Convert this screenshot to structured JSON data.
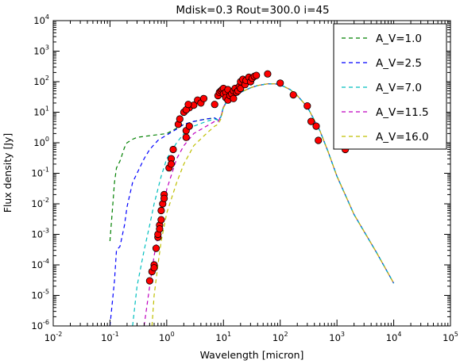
{
  "chart_data": {
    "type": "line",
    "title": "Mdisk=0.3 Rout=300.0 i=45",
    "xlabel": "Wavelength [micron]",
    "ylabel": "Flux density [Jy]",
    "xscale": "log",
    "yscale": "log",
    "xlim": [
      0.01,
      100000
    ],
    "ylim": [
      1e-06,
      10000
    ],
    "xticks": [
      {
        "base": "10",
        "exp": "-2"
      },
      {
        "base": "10",
        "exp": "-1"
      },
      {
        "base": "10",
        "exp": "0"
      },
      {
        "base": "10",
        "exp": "1"
      },
      {
        "base": "10",
        "exp": "2"
      },
      {
        "base": "10",
        "exp": "3"
      },
      {
        "base": "10",
        "exp": "4"
      },
      {
        "base": "10",
        "exp": "5"
      }
    ],
    "yticks": [
      {
        "base": "10",
        "exp": "-6"
      },
      {
        "base": "10",
        "exp": "-5"
      },
      {
        "base": "10",
        "exp": "-4"
      },
      {
        "base": "10",
        "exp": "-3"
      },
      {
        "base": "10",
        "exp": "-2"
      },
      {
        "base": "10",
        "exp": "-1"
      },
      {
        "base": "10",
        "exp": "0"
      },
      {
        "base": "10",
        "exp": "1"
      },
      {
        "base": "10",
        "exp": "2"
      },
      {
        "base": "10",
        "exp": "3"
      },
      {
        "base": "10",
        "exp": "4"
      }
    ],
    "grid": false,
    "legend_position": "top-right",
    "series": [
      {
        "name": "A_V=1.0",
        "color": "#008000",
        "style": "dashed",
        "points": [
          [
            0.1,
            0.0006
          ],
          [
            0.11,
            0.006
          ],
          [
            0.12,
            0.05
          ],
          [
            0.13,
            0.15
          ],
          [
            0.15,
            0.25
          ],
          [
            0.18,
            0.7
          ],
          [
            0.2,
            1.0
          ],
          [
            0.25,
            1.3
          ],
          [
            0.3,
            1.5
          ],
          [
            0.5,
            1.7
          ],
          [
            0.8,
            1.9
          ],
          [
            1.0,
            2.0
          ],
          [
            1.5,
            3.0
          ],
          [
            2.0,
            4.0
          ],
          [
            3.0,
            5.0
          ],
          [
            5.0,
            6.0
          ],
          [
            7.0,
            6.5
          ],
          [
            8.0,
            5.5
          ],
          [
            9.0,
            7.0
          ],
          [
            10.0,
            15.0
          ],
          [
            12.0,
            25.0
          ],
          [
            15.0,
            32.0
          ],
          [
            20.0,
            45.0
          ],
          [
            30.0,
            63.0
          ],
          [
            40.0,
            75.0
          ],
          [
            60.0,
            85.0
          ],
          [
            80.0,
            85.0
          ],
          [
            100.0,
            80.0
          ],
          [
            150.0,
            55.0
          ],
          [
            200.0,
            35.0
          ],
          [
            300.0,
            15.0
          ],
          [
            500.0,
            2.5
          ],
          [
            700.0,
            0.5
          ],
          [
            1000.0,
            0.08
          ],
          [
            2000.0,
            0.0045
          ],
          [
            5000.0,
            0.00025
          ],
          [
            10000.0,
            2.5e-05
          ]
        ]
      },
      {
        "name": "A_V=2.5",
        "color": "#0000ff",
        "style": "dashed",
        "points": [
          [
            0.1,
            1e-06
          ],
          [
            0.12,
            3e-05
          ],
          [
            0.13,
            0.0003
          ],
          [
            0.15,
            0.0004
          ],
          [
            0.18,
            0.002
          ],
          [
            0.2,
            0.008
          ],
          [
            0.25,
            0.05
          ],
          [
            0.3,
            0.1
          ],
          [
            0.4,
            0.3
          ],
          [
            0.5,
            0.6
          ],
          [
            0.7,
            1.2
          ],
          [
            1.0,
            1.8
          ],
          [
            1.5,
            2.8
          ],
          [
            2.0,
            4.0
          ],
          [
            3.0,
            5.0
          ],
          [
            5.0,
            6.0
          ],
          [
            7.0,
            6.5
          ],
          [
            8.0,
            5.5
          ],
          [
            9.0,
            7.0
          ],
          [
            10.0,
            15.0
          ],
          [
            12.0,
            25.0
          ],
          [
            15.0,
            32.0
          ],
          [
            20.0,
            45.0
          ],
          [
            30.0,
            63.0
          ],
          [
            40.0,
            75.0
          ],
          [
            60.0,
            85.0
          ],
          [
            80.0,
            85.0
          ],
          [
            100.0,
            80.0
          ],
          [
            150.0,
            55.0
          ],
          [
            200.0,
            35.0
          ],
          [
            300.0,
            15.0
          ],
          [
            500.0,
            2.5
          ],
          [
            700.0,
            0.5
          ],
          [
            1000.0,
            0.08
          ],
          [
            2000.0,
            0.0045
          ],
          [
            5000.0,
            0.00025
          ],
          [
            10000.0,
            2.5e-05
          ]
        ]
      },
      {
        "name": "A_V=7.0",
        "color": "#00bfbf",
        "style": "dashed",
        "points": [
          [
            0.25,
            1e-06
          ],
          [
            0.3,
            2e-05
          ],
          [
            0.4,
            0.0003
          ],
          [
            0.5,
            0.002
          ],
          [
            0.6,
            0.01
          ],
          [
            0.8,
            0.08
          ],
          [
            1.0,
            0.3
          ],
          [
            1.5,
            1.0
          ],
          [
            2.0,
            2.0
          ],
          [
            3.0,
            3.5
          ],
          [
            5.0,
            5.0
          ],
          [
            7.0,
            6.0
          ],
          [
            8.0,
            5.5
          ],
          [
            9.0,
            7.0
          ],
          [
            10.0,
            15.0
          ],
          [
            12.0,
            25.0
          ],
          [
            15.0,
            32.0
          ],
          [
            20.0,
            45.0
          ],
          [
            30.0,
            63.0
          ],
          [
            40.0,
            75.0
          ],
          [
            60.0,
            85.0
          ],
          [
            80.0,
            85.0
          ],
          [
            100.0,
            80.0
          ],
          [
            150.0,
            55.0
          ],
          [
            200.0,
            35.0
          ],
          [
            300.0,
            15.0
          ],
          [
            500.0,
            2.5
          ],
          [
            700.0,
            0.5
          ],
          [
            1000.0,
            0.08
          ],
          [
            2000.0,
            0.0045
          ],
          [
            5000.0,
            0.00025
          ],
          [
            10000.0,
            2.5e-05
          ]
        ]
      },
      {
        "name": "A_V=11.5",
        "color": "#bf00bf",
        "style": "dashed",
        "points": [
          [
            0.4,
            1e-06
          ],
          [
            0.5,
            2e-05
          ],
          [
            0.6,
            0.0002
          ],
          [
            0.8,
            0.003
          ],
          [
            1.0,
            0.03
          ],
          [
            1.5,
            0.3
          ],
          [
            2.0,
            0.8
          ],
          [
            3.0,
            2.0
          ],
          [
            5.0,
            3.5
          ],
          [
            7.0,
            5.0
          ],
          [
            8.0,
            5.0
          ],
          [
            9.0,
            7.0
          ],
          [
            10.0,
            15.0
          ],
          [
            12.0,
            25.0
          ],
          [
            15.0,
            32.0
          ],
          [
            20.0,
            45.0
          ],
          [
            30.0,
            63.0
          ],
          [
            40.0,
            75.0
          ],
          [
            60.0,
            85.0
          ],
          [
            80.0,
            85.0
          ],
          [
            100.0,
            80.0
          ],
          [
            150.0,
            55.0
          ],
          [
            200.0,
            35.0
          ],
          [
            300.0,
            15.0
          ],
          [
            500.0,
            2.5
          ],
          [
            700.0,
            0.5
          ],
          [
            1000.0,
            0.08
          ],
          [
            2000.0,
            0.0045
          ],
          [
            5000.0,
            0.00025
          ],
          [
            10000.0,
            2.5e-05
          ]
        ]
      },
      {
        "name": "A_V=16.0",
        "color": "#bfbf00",
        "style": "dashed",
        "points": [
          [
            0.55,
            1e-06
          ],
          [
            0.6,
            1e-05
          ],
          [
            0.7,
            0.0001
          ],
          [
            0.8,
            0.0006
          ],
          [
            1.0,
            0.005
          ],
          [
            1.5,
            0.05
          ],
          [
            2.0,
            0.2
          ],
          [
            3.0,
            0.8
          ],
          [
            5.0,
            2.0
          ],
          [
            7.0,
            3.5
          ],
          [
            8.0,
            4.0
          ],
          [
            9.0,
            6.0
          ],
          [
            10.0,
            14.0
          ],
          [
            12.0,
            25.0
          ],
          [
            15.0,
            32.0
          ],
          [
            20.0,
            45.0
          ],
          [
            30.0,
            63.0
          ],
          [
            40.0,
            75.0
          ],
          [
            60.0,
            85.0
          ],
          [
            80.0,
            85.0
          ],
          [
            100.0,
            80.0
          ],
          [
            150.0,
            55.0
          ],
          [
            200.0,
            35.0
          ],
          [
            300.0,
            15.0
          ],
          [
            500.0,
            2.5
          ],
          [
            700.0,
            0.5
          ],
          [
            1000.0,
            0.08
          ],
          [
            2000.0,
            0.0045
          ],
          [
            5000.0,
            0.00025
          ],
          [
            10000.0,
            2.5e-05
          ]
        ]
      }
    ],
    "observations": {
      "color": "#ff0000",
      "points": [
        [
          0.5,
          3e-05
        ],
        [
          0.55,
          6e-05
        ],
        [
          0.6,
          0.0001
        ],
        [
          0.6,
          8e-05
        ],
        [
          0.65,
          0.00035
        ],
        [
          0.7,
          0.0008
        ],
        [
          0.7,
          0.001
        ],
        [
          0.75,
          0.002
        ],
        [
          0.75,
          0.0015
        ],
        [
          0.8,
          0.003
        ],
        [
          0.8,
          0.006
        ],
        [
          0.85,
          0.01
        ],
        [
          0.9,
          0.02
        ],
        [
          0.9,
          0.015
        ],
        [
          1.1,
          0.15
        ],
        [
          1.2,
          0.3
        ],
        [
          1.2,
          0.2
        ],
        [
          1.3,
          0.6
        ],
        [
          1.6,
          4.0
        ],
        [
          1.7,
          6.0
        ],
        [
          2.0,
          10.0
        ],
        [
          2.2,
          1.5
        ],
        [
          2.2,
          2.5
        ],
        [
          2.5,
          14.0
        ],
        [
          2.5,
          3.5
        ],
        [
          3.0,
          17.0
        ],
        [
          3.5,
          25.0
        ],
        [
          4.0,
          20.0
        ],
        [
          4.5,
          28.0
        ],
        [
          2.2,
          12.0
        ],
        [
          2.4,
          18.0
        ],
        [
          7.0,
          18.0
        ],
        [
          8.0,
          35.0
        ],
        [
          8.5,
          45.0
        ],
        [
          9.0,
          50.0
        ],
        [
          9.5,
          55.0
        ],
        [
          10.0,
          60.0
        ],
        [
          10.0,
          40.0
        ],
        [
          11.0,
          45.0
        ],
        [
          11.0,
          30.0
        ],
        [
          12.0,
          55.0
        ],
        [
          12.0,
          25.0
        ],
        [
          13.0,
          35.0
        ],
        [
          14.0,
          40.0
        ],
        [
          15.0,
          28.0
        ],
        [
          15.0,
          50.0
        ],
        [
          16.0,
          60.0
        ],
        [
          17.0,
          45.0
        ],
        [
          18.0,
          50.0
        ],
        [
          19.0,
          70.0
        ],
        [
          20.0,
          60.0
        ],
        [
          20.0,
          100.0
        ],
        [
          22.0,
          120.0
        ],
        [
          24.0,
          80.0
        ],
        [
          25.0,
          110.0
        ],
        [
          28.0,
          140.0
        ],
        [
          30.0,
          100.0
        ],
        [
          32.0,
          130.0
        ],
        [
          35.0,
          150.0
        ],
        [
          38.0,
          160.0
        ],
        [
          60.0,
          180.0
        ],
        [
          100.0,
          90.0
        ],
        [
          170.0,
          37.0
        ],
        [
          300.0,
          16.0
        ],
        [
          350.0,
          5.0
        ],
        [
          430.0,
          3.5
        ],
        [
          470.0,
          1.2
        ],
        [
          1200.0,
          0.8
        ],
        [
          1400.0,
          0.6
        ]
      ]
    }
  }
}
